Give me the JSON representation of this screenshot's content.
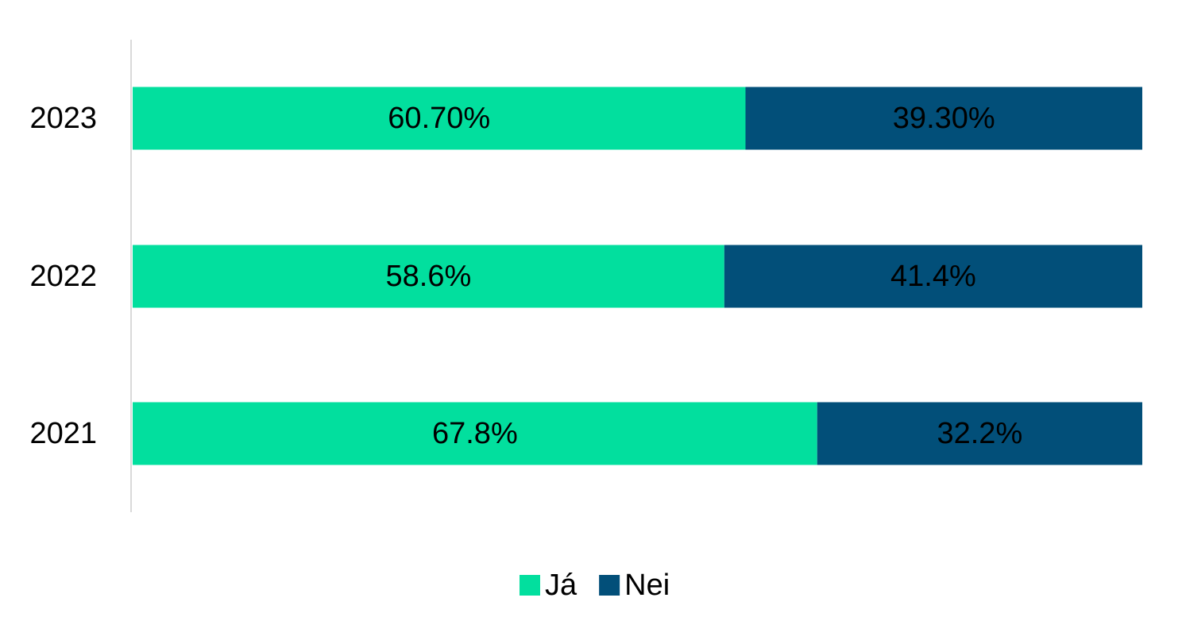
{
  "chart_data": {
    "type": "bar",
    "orientation": "horizontal",
    "stacked": true,
    "title": "",
    "xlabel": "",
    "ylabel": "",
    "xlim": [
      0,
      100
    ],
    "grid": false,
    "legend_position": "bottom",
    "categories": [
      "2023",
      "2022",
      "2021"
    ],
    "series": [
      {
        "name": "Já",
        "color": "#02df9e",
        "values": [
          60.7,
          58.6,
          67.8
        ],
        "labels": [
          "60.70%",
          "58.6%",
          "67.8%"
        ]
      },
      {
        "name": "Nei",
        "color": "#024f79",
        "values": [
          39.3,
          41.4,
          32.2
        ],
        "labels": [
          "39.30%",
          "41.4%",
          "32.2%"
        ]
      }
    ]
  }
}
